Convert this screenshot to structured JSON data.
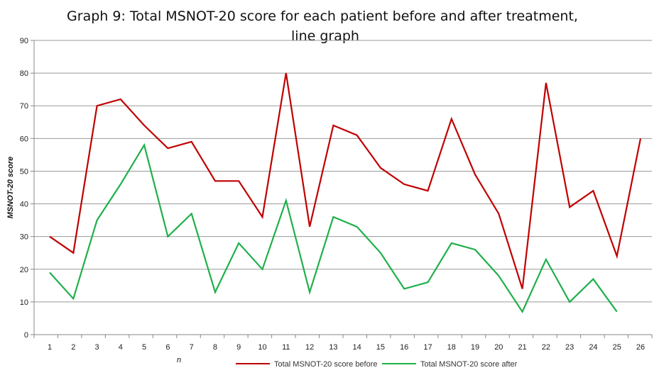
{
  "chart_data": {
    "type": "line",
    "title_line1": "Graph 9: Total MSNOT-20 score for each patient before and after treatment,",
    "title_line2": "line graph",
    "xlabel": "n",
    "ylabel": "MSNOT-20 score",
    "ylim": [
      0,
      90
    ],
    "yticks": [
      0,
      10,
      20,
      30,
      40,
      50,
      60,
      70,
      80,
      90
    ],
    "grid": true,
    "legend_position": "bottom",
    "categories": [
      "1",
      "2",
      "3",
      "4",
      "5",
      "6",
      "7",
      "8",
      "9",
      "10",
      "11",
      "12",
      "13",
      "14",
      "15",
      "16",
      "17",
      "18",
      "19",
      "20",
      "21",
      "22",
      "23",
      "24",
      "25",
      "26"
    ],
    "series": [
      {
        "name": "Total MSNOT-20 score before",
        "color": "#c00000",
        "values": [
          30,
          25,
          70,
          72,
          64,
          57,
          59,
          47,
          47,
          36,
          80,
          33,
          64,
          61,
          51,
          46,
          44,
          66,
          49,
          37,
          14,
          77,
          39,
          44,
          24,
          60
        ]
      },
      {
        "name": "Total MSNOT-20 score after",
        "color": "#1fb04a",
        "values": [
          19,
          11,
          35,
          46,
          58,
          30,
          37,
          13,
          28,
          20,
          41,
          13,
          36,
          33,
          25,
          14,
          16,
          28,
          26,
          18,
          7,
          23,
          10,
          17,
          7,
          null
        ]
      }
    ]
  }
}
